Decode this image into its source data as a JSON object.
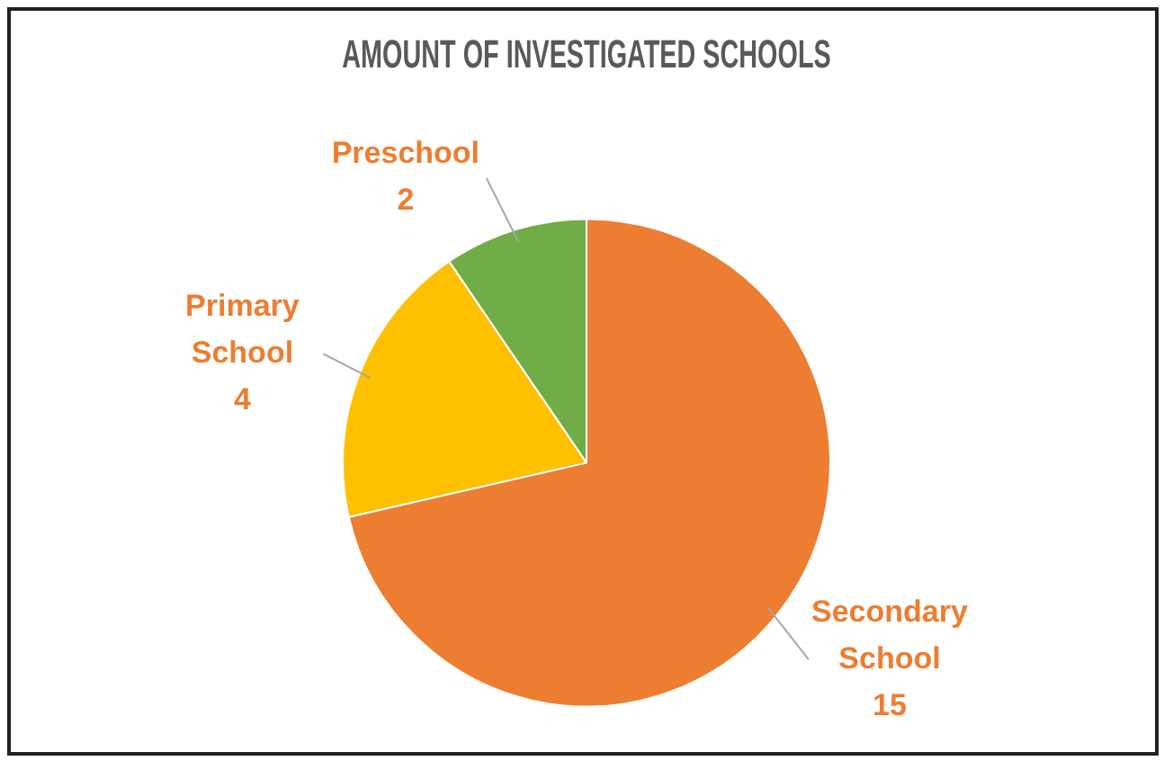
{
  "chart_data": {
    "type": "pie",
    "title": "AMOUNT OF INVESTIGATED SCHOOLS",
    "categories": [
      "Secondary School",
      "Primary School",
      "Preschool"
    ],
    "values": [
      15,
      4,
      2
    ],
    "colors": [
      "#ed7d31",
      "#ffc000",
      "#70ad47"
    ],
    "data_labels": true,
    "legend": false
  }
}
